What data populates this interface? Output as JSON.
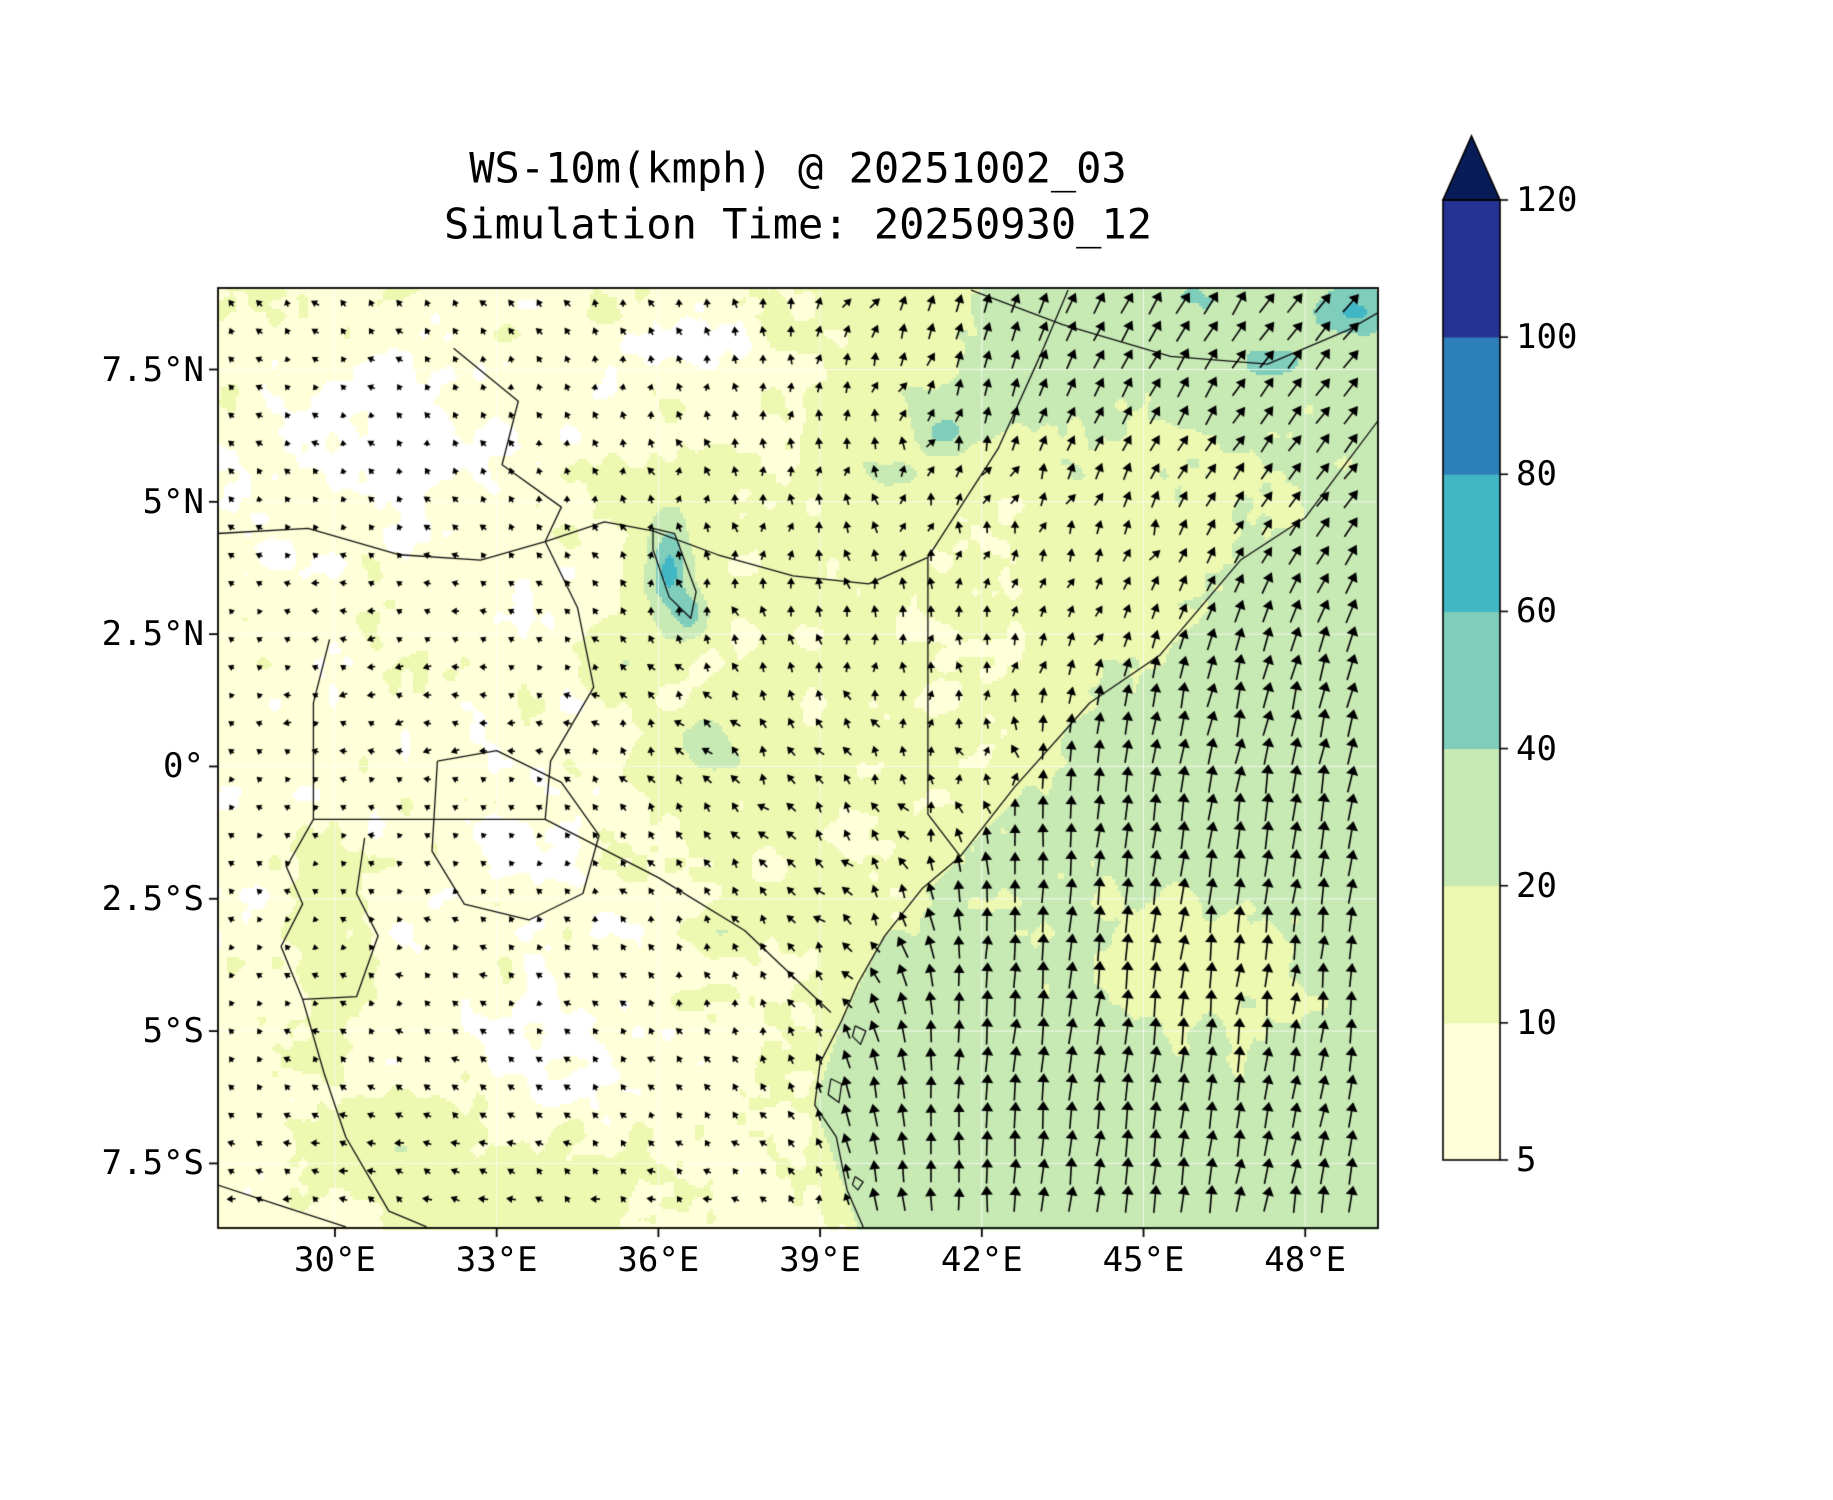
{
  "chart_data": {
    "type": "quiver_filled_contour_map",
    "title_line1": "WS-10m(kmph) @ 20251002_03",
    "title_line2": "Simulation Time: 20250930_12",
    "variable": "WS-10m",
    "units": "kmph",
    "valid_time": "20251002_03",
    "simulation_time": "20250930_12",
    "region": "East Africa / Western Indian Ocean",
    "x_axis": {
      "range": [
        27.83,
        49.35
      ],
      "ticks": [
        {
          "value": 30,
          "label": "30°E"
        },
        {
          "value": 33,
          "label": "33°E"
        },
        {
          "value": 36,
          "label": "36°E"
        },
        {
          "value": 39,
          "label": "39°E"
        },
        {
          "value": 42,
          "label": "42°E"
        },
        {
          "value": 45,
          "label": "45°E"
        },
        {
          "value": 48,
          "label": "48°E"
        }
      ]
    },
    "y_axis": {
      "range": [
        -8.72,
        9.04
      ],
      "ticks": [
        {
          "value": 7.5,
          "label": "7.5°N"
        },
        {
          "value": 5,
          "label": "5°N"
        },
        {
          "value": 2.5,
          "label": "2.5°N"
        },
        {
          "value": 0,
          "label": "0°"
        },
        {
          "value": -2.5,
          "label": "2.5°S"
        },
        {
          "value": -5,
          "label": "5°S"
        },
        {
          "value": -7.5,
          "label": "7.5°S"
        }
      ]
    },
    "colorbar": {
      "orientation": "vertical",
      "levels": [
        5,
        10,
        20,
        40,
        60,
        80,
        100,
        120
      ],
      "ticks": [
        {
          "value": 5,
          "label": "5"
        },
        {
          "value": 10,
          "label": "10"
        },
        {
          "value": 20,
          "label": "20"
        },
        {
          "value": 40,
          "label": "40"
        },
        {
          "value": 60,
          "label": "60"
        },
        {
          "value": 80,
          "label": "80"
        },
        {
          "value": 100,
          "label": "100"
        },
        {
          "value": 120,
          "label": "120"
        }
      ],
      "colors": [
        "#ffffd9",
        "#edf8b1",
        "#c7e9b4",
        "#7fcdbb",
        "#41b6c4",
        "#2c7fb8",
        "#253494"
      ],
      "over_color": "#081d58",
      "under_color": "#ffffff"
    },
    "grid_color": "#ffffff",
    "coastline_color": "#111111",
    "arrow_color": "#000000",
    "wind_grid": {
      "units": "kmph",
      "lons": [
        27.8,
        30,
        32,
        34,
        36,
        38,
        40,
        42,
        44,
        46,
        48,
        49.4
      ],
      "lats": [
        9,
        7.5,
        6,
        4.5,
        3,
        1.5,
        0,
        -1.5,
        -3,
        -4.5,
        -6,
        -7.5,
        -8.7
      ],
      "u": [
        [
          -5,
          -5,
          -4,
          -3,
          -3,
          2,
          4,
          6,
          10,
          14,
          15,
          16
        ],
        [
          -5,
          -4,
          -4,
          -3,
          -2,
          0,
          3,
          5,
          9,
          12,
          14,
          15
        ],
        [
          -4,
          -4,
          -3,
          -2,
          -1,
          1,
          3,
          4,
          7,
          10,
          13,
          14
        ],
        [
          -4,
          -5,
          -5,
          -3,
          -2,
          -1,
          0,
          3,
          5,
          8,
          11,
          12
        ],
        [
          -5,
          -7,
          -7,
          -5,
          -3,
          -2,
          -1,
          2,
          4,
          7,
          10,
          10
        ],
        [
          -5,
          -8,
          -9,
          -6,
          -5,
          -5,
          -3,
          0,
          4,
          6,
          7,
          7
        ],
        [
          -5,
          -7,
          -8,
          -5,
          -6,
          -7,
          -5,
          -2,
          3,
          5,
          5,
          5
        ],
        [
          -4,
          -5,
          -5,
          -4,
          -5,
          -8,
          -9,
          -3,
          3,
          4,
          4,
          4
        ],
        [
          -4,
          -4,
          -5,
          -4,
          -4,
          -7,
          -9,
          0,
          3,
          3,
          3,
          3
        ],
        [
          -4,
          -5,
          -6,
          -5,
          -4,
          -5,
          -6,
          2,
          3,
          3,
          3,
          3
        ],
        [
          -5,
          -7,
          -7,
          -7,
          -5,
          -5,
          -3,
          2,
          3,
          4,
          4,
          4
        ],
        [
          -6,
          -8,
          -9,
          -8,
          -7,
          -5,
          -3,
          1,
          3,
          4,
          5,
          5
        ],
        [
          -7,
          -8,
          -10,
          -9,
          -7,
          -5,
          -2,
          1,
          3,
          4,
          5,
          5
        ]
      ],
      "v": [
        [
          7,
          7,
          7,
          8,
          8,
          10,
          15,
          19,
          22,
          23,
          20,
          20
        ],
        [
          5,
          5,
          6,
          7,
          8,
          9,
          13,
          17,
          20,
          20,
          19,
          19
        ],
        [
          6,
          6,
          7,
          7,
          9,
          10,
          11,
          15,
          17,
          17,
          17,
          17
        ],
        [
          6,
          5,
          6,
          7,
          9,
          11,
          12,
          11,
          13,
          15,
          16,
          16
        ],
        [
          4,
          2,
          2,
          5,
          9,
          11,
          12,
          11,
          12,
          17,
          23,
          24
        ],
        [
          4,
          1,
          -2,
          4,
          8,
          10,
          11,
          11,
          19,
          25,
          27,
          27
        ],
        [
          5,
          2,
          1,
          5,
          9,
          10,
          10,
          10,
          23,
          27,
          28,
          28
        ],
        [
          5,
          4,
          4,
          5,
          8,
          9,
          10,
          17,
          26,
          28,
          28,
          28
        ],
        [
          5,
          5,
          5,
          6,
          7,
          8,
          11,
          25,
          28,
          27,
          25,
          25
        ],
        [
          5,
          5,
          5,
          5,
          7,
          8,
          13,
          26,
          28,
          26,
          23,
          23
        ],
        [
          5,
          5,
          5,
          5,
          6,
          8,
          15,
          26,
          28,
          27,
          25,
          25
        ],
        [
          4,
          3,
          3,
          4,
          5,
          6,
          15,
          25,
          27,
          27,
          26,
          26
        ],
        [
          4,
          3,
          3,
          3,
          4,
          6,
          13,
          25,
          27,
          27,
          26,
          26
        ]
      ]
    },
    "speed_anomalies": [
      {
        "lon": 36.2,
        "lat": 3.7,
        "rx": 0.35,
        "ry": 0.85,
        "amp": 58
      },
      {
        "lon": 36.6,
        "lat": 2.9,
        "rx": 0.3,
        "ry": 0.4,
        "amp": 38
      },
      {
        "lon": 49.0,
        "lat": 8.6,
        "rx": 0.9,
        "ry": 0.5,
        "amp": 38
      },
      {
        "lon": 47.4,
        "lat": 7.6,
        "rx": 0.9,
        "ry": 0.5,
        "amp": 20
      },
      {
        "lon": 45.8,
        "lat": 8.8,
        "rx": 1.1,
        "ry": 0.5,
        "amp": 15
      },
      {
        "lon": 41.8,
        "lat": 6.8,
        "rx": 1.3,
        "ry": 0.55,
        "amp": 14
      },
      {
        "lon": 41.3,
        "lat": 6.3,
        "rx": 0.4,
        "ry": 0.3,
        "amp": 30
      },
      {
        "lon": 43.4,
        "lat": 7.6,
        "rx": 1.0,
        "ry": 0.55,
        "amp": 12
      },
      {
        "lon": 40.0,
        "lat": 5.6,
        "rx": 1.2,
        "ry": 0.6,
        "amp": 9
      },
      {
        "lon": 36.0,
        "lat": 5.1,
        "rx": 1.2,
        "ry": 0.7,
        "amp": 9
      },
      {
        "lon": 36.9,
        "lat": 0.4,
        "rx": 0.8,
        "ry": 0.8,
        "amp": 12
      },
      {
        "lon": 35.3,
        "lat": 2.0,
        "rx": 0.7,
        "ry": 0.6,
        "amp": 9
      },
      {
        "lon": 37.3,
        "lat": -3.1,
        "rx": 0.6,
        "ry": 0.4,
        "amp": 9
      },
      {
        "lon": 29.7,
        "lat": -2.2,
        "rx": 0.7,
        "ry": 1.0,
        "amp": 11
      },
      {
        "lon": 29.9,
        "lat": -4.0,
        "rx": 0.7,
        "ry": 0.7,
        "amp": 8
      },
      {
        "lon": 33.9,
        "lat": -8.2,
        "rx": 1.6,
        "ry": 0.8,
        "amp": 10
      },
      {
        "lon": 30.9,
        "lat": -7.2,
        "rx": 1.1,
        "ry": 0.9,
        "amp": 8
      },
      {
        "lon": 31.6,
        "lat": 6.1,
        "rx": 1.7,
        "ry": 1.4,
        "amp": -6
      },
      {
        "lon": 36.9,
        "lat": 7.9,
        "rx": 1.6,
        "ry": 1.0,
        "amp": -5
      },
      {
        "lon": 34.3,
        "lat": -5.3,
        "rx": 1.4,
        "ry": 1.0,
        "amp": -6
      },
      {
        "lon": 39.9,
        "lat": -1.5,
        "rx": 0.9,
        "ry": 0.9,
        "amp": -5
      },
      {
        "lon": 40.6,
        "lat": -2.6,
        "rx": 0.7,
        "ry": 0.6,
        "amp": -6
      },
      {
        "lon": 33.2,
        "lat": -1.5,
        "rx": 0.9,
        "ry": 0.7,
        "amp": -4
      },
      {
        "lon": 45.6,
        "lat": -3.6,
        "rx": 2.4,
        "ry": 1.9,
        "amp": -13
      }
    ],
    "coast_boundary": [
      [
        6.6,
        49.4
      ],
      [
        4.7,
        48.0
      ],
      [
        2.1,
        45.3
      ],
      [
        0,
        43.2
      ],
      [
        -1.7,
        41.6
      ],
      [
        -3.2,
        40.2
      ],
      [
        -4.8,
        39.4
      ],
      [
        -6.4,
        38.9
      ],
      [
        -8.7,
        39.7
      ]
    ],
    "map_outlines": [
      {
        "name": "somali-coast",
        "points": [
          [
            49.4,
            6.6
          ],
          [
            48.0,
            4.7
          ],
          [
            46.8,
            3.9
          ],
          [
            45.3,
            2.1
          ],
          [
            44.0,
            1.2
          ],
          [
            42.6,
            -0.4
          ],
          [
            41.6,
            -1.7
          ]
        ]
      },
      {
        "name": "kenya-tanzania-coast",
        "points": [
          [
            41.6,
            -1.7
          ],
          [
            40.9,
            -2.3
          ],
          [
            40.2,
            -3.2
          ],
          [
            39.7,
            -4.1
          ],
          [
            39.4,
            -4.8
          ],
          [
            39.0,
            -5.6
          ],
          [
            38.9,
            -6.4
          ],
          [
            39.3,
            -7.0
          ],
          [
            39.5,
            -8.0
          ],
          [
            39.8,
            -8.7
          ]
        ]
      },
      {
        "name": "gulf-of-aden-coast",
        "points": [
          [
            41.8,
            9.0
          ],
          [
            43.5,
            8.35
          ],
          [
            45.5,
            7.75
          ],
          [
            47.3,
            7.6
          ],
          [
            48.8,
            8.25
          ],
          [
            49.4,
            8.6
          ]
        ]
      },
      {
        "name": "somalia-ethiopia-border",
        "points": [
          [
            41.0,
            3.95
          ],
          [
            42.3,
            6.0
          ],
          [
            43.1,
            7.8
          ],
          [
            43.6,
            9.0
          ]
        ]
      },
      {
        "name": "ethiopia-kenya-border",
        "points": [
          [
            33.9,
            4.25
          ],
          [
            35.0,
            4.62
          ],
          [
            35.9,
            4.45
          ],
          [
            37.1,
            4.0
          ],
          [
            38.5,
            3.6
          ],
          [
            39.9,
            3.45
          ],
          [
            41.0,
            3.95
          ]
        ]
      },
      {
        "name": "kenya-somalia-border",
        "points": [
          [
            41.0,
            3.95
          ],
          [
            41.0,
            -0.9
          ],
          [
            41.6,
            -1.7
          ]
        ]
      },
      {
        "name": "south-sudan-border",
        "points": [
          [
            27.8,
            4.4
          ],
          [
            29.5,
            4.5
          ],
          [
            31.2,
            4.0
          ],
          [
            32.7,
            3.9
          ],
          [
            33.9,
            4.25
          ]
        ]
      },
      {
        "name": "sudan-ethiopia-border",
        "points": [
          [
            32.2,
            7.9
          ],
          [
            33.4,
            6.9
          ],
          [
            33.1,
            5.7
          ],
          [
            34.2,
            4.9
          ],
          [
            33.9,
            4.25
          ]
        ]
      },
      {
        "name": "uganda-kenya-border",
        "points": [
          [
            33.9,
            4.25
          ],
          [
            34.5,
            3.0
          ],
          [
            34.8,
            1.5
          ],
          [
            34.0,
            0.1
          ],
          [
            33.9,
            -1.0
          ]
        ]
      },
      {
        "name": "drc-uganda-border",
        "points": [
          [
            29.9,
            2.4
          ],
          [
            29.6,
            1.2
          ],
          [
            29.6,
            0.0
          ],
          [
            29.6,
            -1.0
          ]
        ]
      },
      {
        "name": "uganda-tanzania-border",
        "points": [
          [
            29.6,
            -1.0
          ],
          [
            33.9,
            -1.0
          ]
        ]
      },
      {
        "name": "kenya-tanzania-border",
        "points": [
          [
            33.9,
            -1.0
          ],
          [
            36.0,
            -2.1
          ],
          [
            37.6,
            -3.1
          ],
          [
            39.2,
            -4.65
          ]
        ]
      },
      {
        "name": "rwanda-burundi-borders",
        "points": [
          [
            29.6,
            -1.0
          ],
          [
            29.1,
            -1.9
          ],
          [
            29.4,
            -2.6
          ],
          [
            29.0,
            -3.4
          ],
          [
            29.4,
            -4.4
          ],
          [
            30.4,
            -4.35
          ],
          [
            30.8,
            -3.2
          ],
          [
            30.4,
            -2.4
          ],
          [
            30.55,
            -1.35
          ]
        ]
      },
      {
        "name": "lake-tanganyika-shore",
        "points": [
          [
            29.4,
            -4.4
          ],
          [
            29.8,
            -5.8
          ],
          [
            30.2,
            -7.0
          ],
          [
            31.0,
            -8.4
          ],
          [
            31.7,
            -8.7
          ]
        ]
      },
      {
        "name": "zambia-border",
        "points": [
          [
            27.8,
            -7.9
          ],
          [
            29.0,
            -8.3
          ],
          [
            30.2,
            -8.7
          ]
        ]
      },
      {
        "name": "lake-victoria",
        "points": [
          [
            31.9,
            0.1
          ],
          [
            33.0,
            0.3
          ],
          [
            34.2,
            -0.3
          ],
          [
            34.9,
            -1.3
          ],
          [
            34.6,
            -2.4
          ],
          [
            33.6,
            -2.9
          ],
          [
            32.4,
            -2.6
          ],
          [
            31.8,
            -1.6
          ],
          [
            31.9,
            0.1
          ]
        ]
      },
      {
        "name": "lake-turkana",
        "points": [
          [
            35.9,
            4.5
          ],
          [
            36.3,
            4.4
          ],
          [
            36.7,
            3.3
          ],
          [
            36.6,
            2.8
          ],
          [
            36.2,
            3.2
          ],
          [
            35.9,
            4.1
          ],
          [
            35.9,
            4.5
          ]
        ]
      },
      {
        "name": "pemba-island",
        "points": [
          [
            39.65,
            -4.9
          ],
          [
            39.85,
            -5.0
          ],
          [
            39.75,
            -5.25
          ],
          [
            39.6,
            -5.1
          ],
          [
            39.65,
            -4.9
          ]
        ]
      },
      {
        "name": "zanzibar-island",
        "points": [
          [
            39.2,
            -5.9
          ],
          [
            39.4,
            -6.0
          ],
          [
            39.35,
            -6.35
          ],
          [
            39.15,
            -6.2
          ],
          [
            39.2,
            -5.9
          ]
        ]
      },
      {
        "name": "mafia-island",
        "points": [
          [
            39.65,
            -7.75
          ],
          [
            39.8,
            -7.85
          ],
          [
            39.7,
            -8.0
          ],
          [
            39.6,
            -7.9
          ],
          [
            39.65,
            -7.75
          ]
        ]
      }
    ]
  }
}
